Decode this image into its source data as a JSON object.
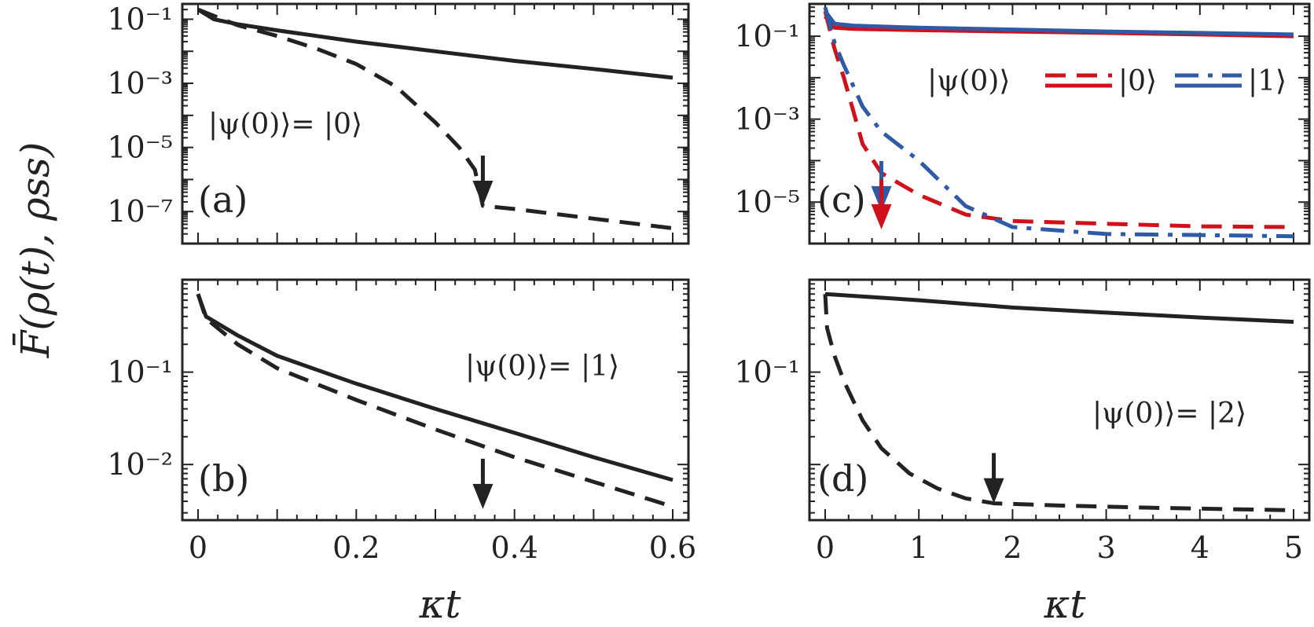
{
  "ylabel": "F̄(ρ(t), ρss)",
  "xlabel": "κt",
  "colors": {
    "black": "#222222",
    "red": "#d0101a",
    "blue": "#2f5aa6"
  },
  "chart_data": [
    {
      "type": "line",
      "panel_label": "(a)",
      "annotation": "|ψ(0)⟩= |0⟩",
      "xlim": [
        0,
        0.6
      ],
      "ylog": true,
      "ylim": [
        1e-08,
        0.3
      ],
      "x_ticks": [],
      "y_ticks": [
        0.1,
        0.001,
        1e-05,
        1e-07
      ],
      "y_tick_labels": [
        "10⁻¹",
        "10⁻³",
        "10⁻⁵",
        "10⁻⁷"
      ],
      "series": [
        {
          "style": "solid",
          "color": "black",
          "x": [
            0,
            0.02,
            0.05,
            0.1,
            0.2,
            0.3,
            0.4,
            0.5,
            0.6
          ],
          "y": [
            0.2,
            0.1,
            0.07,
            0.045,
            0.02,
            0.01,
            0.005,
            0.0028,
            0.0015
          ]
        },
        {
          "style": "dashed",
          "color": "black",
          "x": [
            0,
            0.05,
            0.1,
            0.15,
            0.2,
            0.25,
            0.3,
            0.33,
            0.35,
            0.36,
            0.4,
            0.5,
            0.6
          ],
          "y": [
            0.2,
            0.065,
            0.03,
            0.012,
            0.004,
            0.0008,
            6e-05,
            1e-05,
            2e-06,
            1.5e-07,
            1.2e-07,
            6e-08,
            3e-08
          ]
        }
      ],
      "arrows": [
        {
          "x": 0.36,
          "y": 1.5e-07,
          "color": "black"
        }
      ]
    },
    {
      "type": "line",
      "panel_label": "(c)",
      "legend_title": "|ψ(0)⟩",
      "legend": [
        "|0⟩",
        "|1⟩"
      ],
      "xlim": [
        0,
        5
      ],
      "ylog": true,
      "ylim": [
        1e-06,
        0.6
      ],
      "x_ticks": [],
      "y_ticks": [
        0.1,
        0.001,
        1e-05
      ],
      "y_tick_labels": [
        "10⁻¹",
        "10⁻³",
        "10⁻⁵"
      ],
      "series": [
        {
          "style": "solid",
          "color": "red",
          "x": [
            0,
            0.1,
            0.3,
            1,
            2,
            3,
            4,
            5
          ],
          "y": [
            0.3,
            0.16,
            0.15,
            0.14,
            0.13,
            0.12,
            0.11,
            0.1
          ]
        },
        {
          "style": "solid",
          "color": "blue",
          "x": [
            0,
            0.1,
            0.3,
            1,
            2,
            3,
            4,
            5
          ],
          "y": [
            0.4,
            0.2,
            0.18,
            0.16,
            0.145,
            0.13,
            0.12,
            0.11
          ]
        },
        {
          "style": "dashed",
          "color": "red",
          "x": [
            0,
            0.1,
            0.2,
            0.4,
            0.6,
            1,
            1.5,
            2,
            3,
            4,
            5
          ],
          "y": [
            0.4,
            0.05,
            0.01,
            0.00025,
            5e-05,
            1.5e-05,
            5e-06,
            3.5e-06,
            3e-06,
            2.6e-06,
            2.5e-06
          ]
        },
        {
          "style": "dashdot",
          "color": "blue",
          "x": [
            0,
            0.1,
            0.2,
            0.4,
            0.6,
            1,
            1.5,
            2,
            3,
            4,
            5
          ],
          "y": [
            0.5,
            0.07,
            0.02,
            0.002,
            0.0005,
            0.0001,
            8e-06,
            2.5e-06,
            1.7e-06,
            1.6e-06,
            1.5e-06
          ]
        }
      ],
      "arrows": [
        {
          "x": 0.6,
          "y": 6e-06,
          "color": "blue"
        },
        {
          "x": 0.6,
          "y": 2.2e-06,
          "color": "red"
        }
      ]
    },
    {
      "type": "line",
      "panel_label": "(b)",
      "annotation": "|ψ(0)⟩= |1⟩",
      "xlim": [
        0,
        0.6
      ],
      "ylog": true,
      "ylim": [
        0.0025,
        1.0
      ],
      "x_ticks": [
        0,
        0.2,
        0.4,
        0.6
      ],
      "x_tick_labels": [
        "0",
        "0.2",
        "0.4",
        "0.6"
      ],
      "y_ticks": [
        0.1,
        0.01
      ],
      "y_tick_labels": [
        "10⁻¹",
        "10⁻²"
      ],
      "series": [
        {
          "style": "solid",
          "color": "black",
          "x": [
            0,
            0.01,
            0.05,
            0.1,
            0.2,
            0.3,
            0.4,
            0.5,
            0.6
          ],
          "y": [
            0.7,
            0.4,
            0.25,
            0.15,
            0.075,
            0.04,
            0.022,
            0.012,
            0.0068
          ]
        },
        {
          "style": "dashed",
          "color": "black",
          "x": [
            0,
            0.01,
            0.05,
            0.1,
            0.2,
            0.3,
            0.4,
            0.5,
            0.6
          ],
          "y": [
            0.7,
            0.38,
            0.2,
            0.11,
            0.05,
            0.024,
            0.012,
            0.0065,
            0.0035
          ]
        }
      ],
      "arrows": [
        {
          "x": 0.36,
          "y": 0.0033,
          "color": "black"
        }
      ]
    },
    {
      "type": "line",
      "panel_label": "(d)",
      "annotation": "|ψ(0)⟩= |2⟩",
      "xlim": [
        0,
        5
      ],
      "ylog": true,
      "ylim": [
        0.0025,
        1.0
      ],
      "x_ticks": [
        0,
        1,
        2,
        3,
        4,
        5
      ],
      "x_tick_labels": [
        "0",
        "1",
        "2",
        "3",
        "4",
        "5"
      ],
      "y_ticks": [
        0.1
      ],
      "y_tick_labels": [
        "10⁻¹"
      ],
      "series": [
        {
          "style": "solid",
          "color": "black",
          "x": [
            0,
            1,
            2,
            3,
            4,
            5
          ],
          "y": [
            0.7,
            0.6,
            0.5,
            0.44,
            0.39,
            0.35
          ]
        },
        {
          "style": "dashed",
          "color": "black",
          "x": [
            0,
            0.02,
            0.1,
            0.2,
            0.4,
            0.6,
            0.9,
            1.2,
            1.5,
            1.8,
            2.5,
            3.5,
            5
          ],
          "y": [
            0.7,
            0.3,
            0.15,
            0.08,
            0.03,
            0.015,
            0.008,
            0.0055,
            0.0043,
            0.0038,
            0.0036,
            0.0034,
            0.0032
          ]
        }
      ],
      "arrows": [
        {
          "x": 1.8,
          "y": 0.0038,
          "color": "black"
        }
      ]
    }
  ]
}
